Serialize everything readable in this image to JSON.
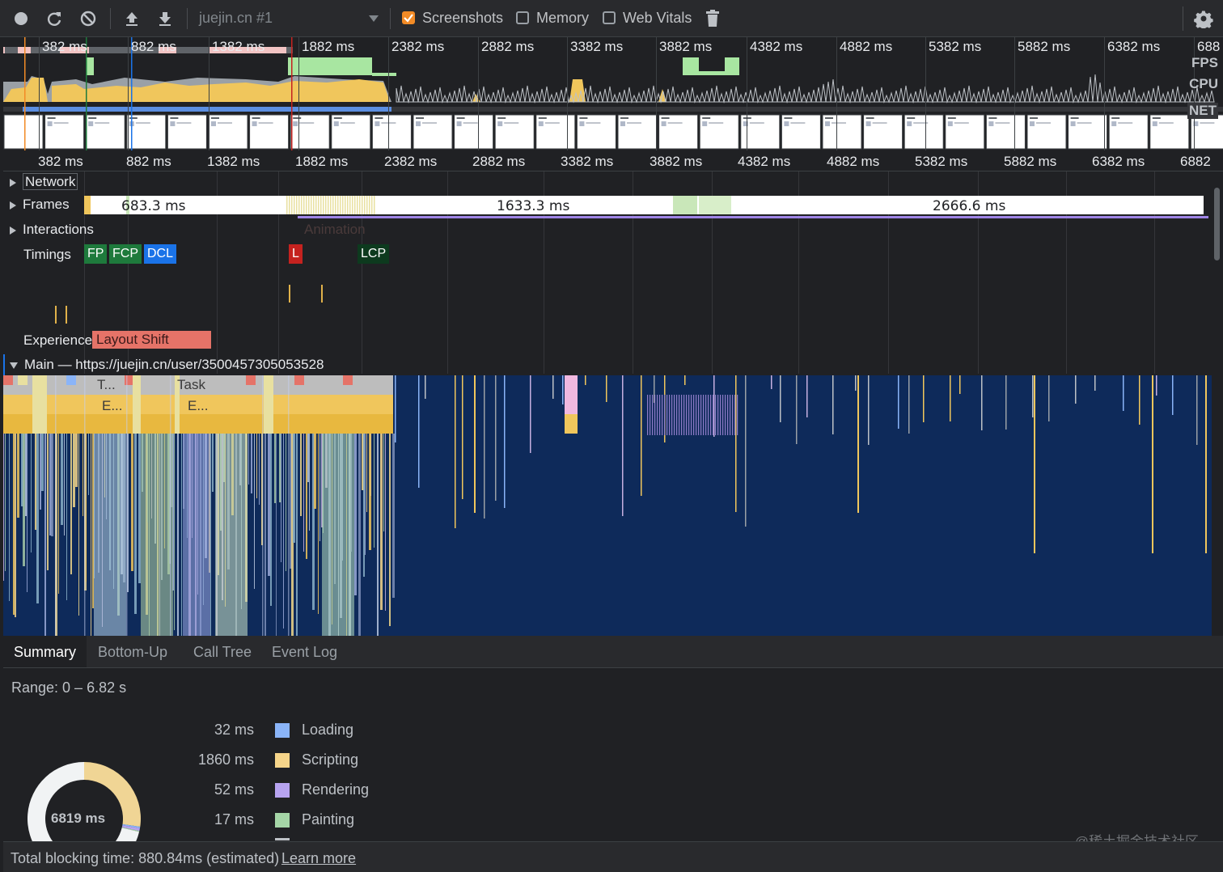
{
  "toolbar": {
    "profile_select": "juejin.cn #1",
    "screenshots_label": "Screenshots",
    "screenshots_checked": true,
    "memory_label": "Memory",
    "memory_checked": false,
    "web_vitals_label": "Web Vitals",
    "web_vitals_checked": false,
    "accent_color": "#f28b26"
  },
  "overview": {
    "ticks": [
      "382 ms",
      "882 ms",
      "1382 ms",
      "1882 ms",
      "2382 ms",
      "2882 ms",
      "3382 ms",
      "3882 ms",
      "4382 ms",
      "4882 ms",
      "5382 ms",
      "5882 ms",
      "6382 ms",
      "688"
    ],
    "fps_label": "FPS",
    "cpu_label": "CPU",
    "net_label": "NET"
  },
  "ruler": {
    "ticks": [
      "382 ms",
      "882 ms",
      "1382 ms",
      "1882 ms",
      "2382 ms",
      "2882 ms",
      "3382 ms",
      "3882 ms",
      "4382 ms",
      "4882 ms",
      "5382 ms",
      "5882 ms",
      "6382 ms",
      "6882"
    ]
  },
  "tracks": {
    "network_label": "Network",
    "frames_label": "Frames",
    "frames": [
      "683.3 ms",
      "1633.3 ms",
      "2666.6 ms"
    ],
    "interactions_label": "Interactions",
    "animation_label": "Animation",
    "timings_label": "Timings",
    "timings": {
      "fp": "FP",
      "fcp": "FCP",
      "dcl": "DCL",
      "l": "L",
      "lcp": "LCP"
    },
    "experience_label": "Experience",
    "layout_shift_label": "Layout Shift",
    "main_label": "Main — https://juejin.cn/user/3500457305053528",
    "flame_labels": {
      "task_short": "T...",
      "task": "Task",
      "eval1": "E...",
      "eval2": "E..."
    }
  },
  "tabs": [
    "Summary",
    "Bottom-Up",
    "Call Tree",
    "Event Log"
  ],
  "active_tab": "Summary",
  "summary": {
    "range": "Range: 0 – 6.82 s",
    "total_center": "6819 ms",
    "legend": [
      {
        "value": "32 ms",
        "name": "Loading",
        "color": "#8ab4f8"
      },
      {
        "value": "1860 ms",
        "name": "Scripting",
        "color": "#f6d58a"
      },
      {
        "value": "52 ms",
        "name": "Rendering",
        "color": "#b7a3f0"
      },
      {
        "value": "17 ms",
        "name": "Painting",
        "color": "#a5d6a7"
      }
    ],
    "total_blocking_time": "Total blocking time: 880.84ms (estimated)",
    "learn_more": "Learn more"
  },
  "watermark": "@稀土掘金技术社区",
  "colors": {
    "flame_bg": "#0e2a5a",
    "task_gray": "#9aa0a6",
    "scripting": "#f0c65c",
    "layout_shift": "#e57368",
    "frame_green": "#c9e7b9",
    "fp_green": "#1e7a3c",
    "dcl_blue": "#1a73e8",
    "l_red": "#c5221f"
  }
}
